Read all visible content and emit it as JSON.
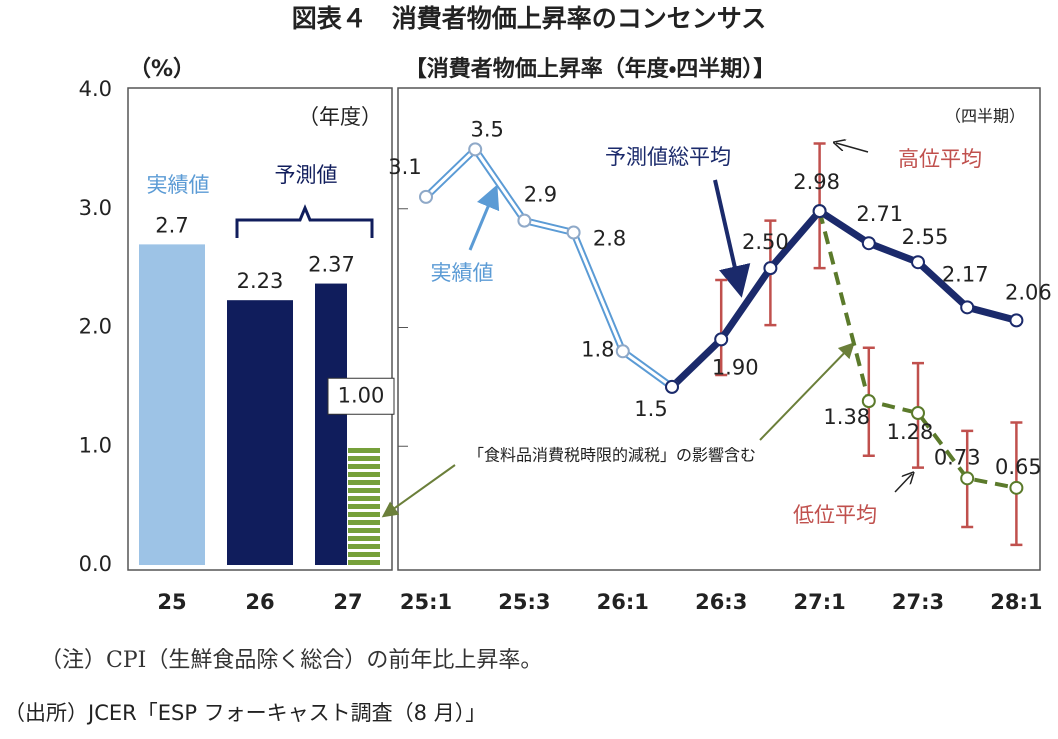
{
  "title": "図表４　消費者物価上昇率のコンセンサス",
  "subtitle": "【消費者物価上昇率（年度・四半期）】",
  "note": "（注）CPI（生鮮食品除く総合）の前年比上昇率。",
  "source": "（出所）JCER「ESP フォーキャスト調査（8 月）」",
  "chart_data": [
    {
      "type": "bar",
      "y_label": "（%）",
      "x_label": "（年度）",
      "categories": [
        "25",
        "26",
        "27"
      ],
      "series": [
        {
          "name": "実績値",
          "color": "#9dc3e6",
          "values": [
            2.7,
            null,
            null
          ]
        },
        {
          "name": "予測値",
          "color": "#101d5c",
          "values": [
            null,
            2.23,
            2.37
          ]
        },
        {
          "color": "#76a03a",
          "pattern": "stripes",
          "values": [
            null,
            null,
            1.0
          ],
          "value_labels": [
            null,
            null,
            "1.00"
          ]
        }
      ],
      "ylim": [
        0,
        4
      ],
      "yticks": [
        {
          "value": 0,
          "label": "0.0"
        },
        {
          "value": 1,
          "label": "1.0"
        },
        {
          "value": 2,
          "label": "2.0"
        },
        {
          "value": 3,
          "label": "3.0"
        },
        {
          "value": 4,
          "label": "4.0"
        }
      ]
    },
    {
      "type": "line",
      "x_label": "（四半期）",
      "categories": [
        "25:1",
        null,
        "25:3",
        null,
        "26:1",
        null,
        "26:3",
        null,
        "27:1",
        null,
        "27:3",
        null,
        "28:1"
      ],
      "series": [
        {
          "name": "実績値",
          "color": "#5b9bd5",
          "values": [
            3.1,
            3.5,
            2.9,
            2.8,
            1.8,
            1.5,
            null,
            null,
            null,
            null,
            null,
            null,
            null
          ]
        },
        {
          "name": "予測値総平均",
          "color": "#1b2a6b",
          "values": [
            null,
            null,
            null,
            null,
            null,
            1.5,
            1.9,
            2.5,
            2.98,
            2.71,
            2.55,
            2.17,
            2.06
          ],
          "value_labels": [
            null,
            null,
            null,
            null,
            null,
            null,
            "1.90",
            "2.50",
            "2.98",
            "2.71",
            "2.55",
            "2.17",
            "2.06"
          ]
        },
        {
          "name": "高位平均",
          "color": "#c0504d",
          "values": [
            null,
            null,
            null,
            null,
            null,
            null,
            2.4,
            2.9,
            3.55,
            1.83,
            1.7,
            1.13,
            1.2
          ]
        },
        {
          "name": "低位平均",
          "color": "#c0504d",
          "values": [
            null,
            null,
            null,
            null,
            null,
            null,
            1.6,
            2.02,
            2.5,
            0.92,
            0.82,
            0.32,
            0.17
          ]
        },
        {
          "color": "#5b7a2b",
          "dash": true,
          "values": [
            null,
            null,
            null,
            null,
            null,
            null,
            null,
            null,
            2.98,
            1.38,
            1.28,
            0.73,
            0.65
          ],
          "value_labels": [
            null,
            null,
            null,
            null,
            null,
            null,
            null,
            null,
            null,
            "1.38",
            "1.28",
            "0.73",
            "0.65"
          ]
        }
      ],
      "annotation": "「食料品消費税時限的減税」の影響含む",
      "ylim": [
        0,
        4
      ],
      "yticks": [
        1,
        2,
        3
      ]
    }
  ]
}
